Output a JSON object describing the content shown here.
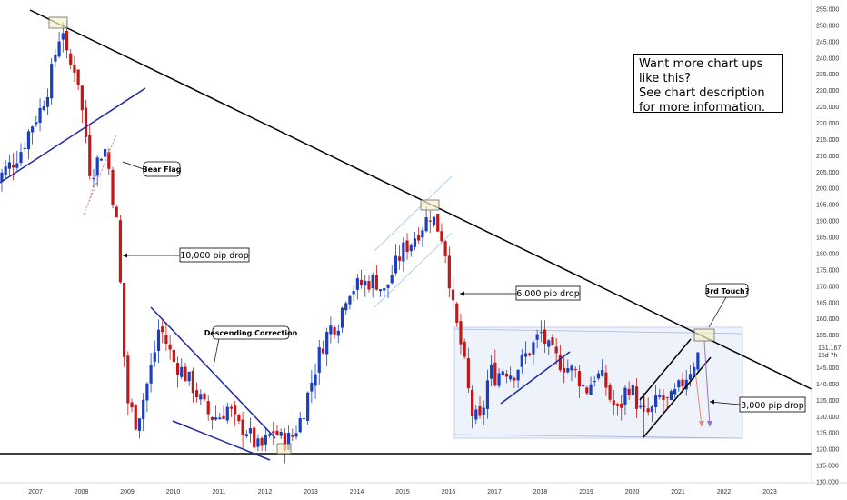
{
  "chart_data": {
    "type": "candlestick",
    "instrument_price_axis": {
      "ylim": [
        110,
        257
      ],
      "ticks": [
        "255.000",
        "250.000",
        "245.000",
        "240.000",
        "235.000",
        "230.000",
        "225.000",
        "220.000",
        "215.000",
        "210.000",
        "205.000",
        "200.000",
        "195.000",
        "190.000",
        "185.000",
        "180.000",
        "175.000",
        "170.000",
        "165.000",
        "160.000",
        "155.000",
        "150.000",
        "145.000",
        "140.000",
        "135.000",
        "130.000",
        "125.000",
        "120.000",
        "115.000",
        "110.000"
      ],
      "last_price": "151.167",
      "countdown": "15d 7h"
    },
    "x_axis": {
      "ticks": [
        "2007",
        "2008",
        "2009",
        "2010",
        "2011",
        "2012",
        "2013",
        "2014",
        "2015",
        "2016",
        "2017",
        "2018",
        "2019",
        "2020",
        "2021",
        "2022",
        "2023"
      ]
    },
    "candles_monthly_close": [
      [
        2006.1,
        201
      ],
      [
        2006.3,
        205
      ],
      [
        2006.5,
        208
      ],
      [
        2006.7,
        212
      ],
      [
        2006.9,
        219
      ],
      [
        2007.1,
        224
      ],
      [
        2007.3,
        232
      ],
      [
        2007.5,
        246
      ],
      [
        2007.6,
        249
      ],
      [
        2007.7,
        238
      ],
      [
        2007.9,
        237
      ],
      [
        2008.0,
        225
      ],
      [
        2008.1,
        216
      ],
      [
        2008.2,
        204
      ],
      [
        2008.4,
        210
      ],
      [
        2008.5,
        213
      ],
      [
        2008.6,
        206
      ],
      [
        2008.8,
        186
      ],
      [
        2008.9,
        155
      ],
      [
        2009.0,
        135
      ],
      [
        2009.2,
        128
      ],
      [
        2009.4,
        138
      ],
      [
        2009.6,
        150
      ],
      [
        2009.7,
        158
      ],
      [
        2009.9,
        151
      ],
      [
        2010.0,
        147
      ],
      [
        2010.2,
        144
      ],
      [
        2010.4,
        140
      ],
      [
        2010.6,
        135
      ],
      [
        2010.8,
        130
      ],
      [
        2011.0,
        130
      ],
      [
        2011.2,
        133
      ],
      [
        2011.4,
        127
      ],
      [
        2011.6,
        126
      ],
      [
        2011.8,
        121
      ],
      [
        2011.9,
        120
      ],
      [
        2012.0,
        122
      ],
      [
        2012.2,
        126
      ],
      [
        2012.4,
        122
      ],
      [
        2012.6,
        124
      ],
      [
        2012.8,
        130
      ],
      [
        2013.0,
        140
      ],
      [
        2013.2,
        150
      ],
      [
        2013.4,
        157
      ],
      [
        2013.6,
        159
      ],
      [
        2013.8,
        169
      ],
      [
        2014.0,
        170
      ],
      [
        2014.2,
        171
      ],
      [
        2014.4,
        172
      ],
      [
        2014.6,
        168
      ],
      [
        2014.8,
        175
      ],
      [
        2015.0,
        181
      ],
      [
        2015.2,
        184
      ],
      [
        2015.4,
        188
      ],
      [
        2015.6,
        192
      ],
      [
        2015.7,
        190
      ],
      [
        2015.9,
        184
      ],
      [
        2016.0,
        174
      ],
      [
        2016.1,
        163
      ],
      [
        2016.3,
        150
      ],
      [
        2016.4,
        141
      ],
      [
        2016.5,
        131
      ],
      [
        2016.7,
        128
      ],
      [
        2016.9,
        145
      ],
      [
        2017.0,
        142
      ],
      [
        2017.2,
        145
      ],
      [
        2017.4,
        143
      ],
      [
        2017.6,
        147
      ],
      [
        2017.8,
        151
      ],
      [
        2017.9,
        153
      ],
      [
        2018.0,
        156
      ],
      [
        2018.2,
        150
      ],
      [
        2018.4,
        147
      ],
      [
        2018.6,
        145
      ],
      [
        2018.8,
        143
      ],
      [
        2018.9,
        140
      ],
      [
        2019.0,
        138
      ],
      [
        2019.2,
        143
      ],
      [
        2019.4,
        141
      ],
      [
        2019.5,
        136
      ],
      [
        2019.7,
        131
      ],
      [
        2019.9,
        140
      ],
      [
        2020.0,
        138
      ],
      [
        2020.2,
        131
      ],
      [
        2020.4,
        131
      ],
      [
        2020.6,
        136
      ],
      [
        2020.8,
        134
      ],
      [
        2021.0,
        138
      ],
      [
        2021.2,
        143
      ],
      [
        2021.4,
        148
      ],
      [
        2021.5,
        151
      ]
    ]
  },
  "annotations": {
    "bear_flag": "Bear Flag",
    "drop_10000": "10,000 pip drop",
    "descending_correction": "Descending Correction",
    "drop_6000": "6,000 pip drop",
    "third_touch": "3rd Touch?",
    "drop_3000": "3,000 pip drop"
  },
  "promo": {
    "line1": "Want more chart ups",
    "line2": "like this?",
    "line3": "See chart description",
    "line4": "for more information."
  },
  "colors": {
    "bull": "#1b3fbf",
    "bear": "#c41818",
    "trendline": "#000000",
    "channel": "#1f2a9e",
    "range_fill": "#eef3fb"
  }
}
